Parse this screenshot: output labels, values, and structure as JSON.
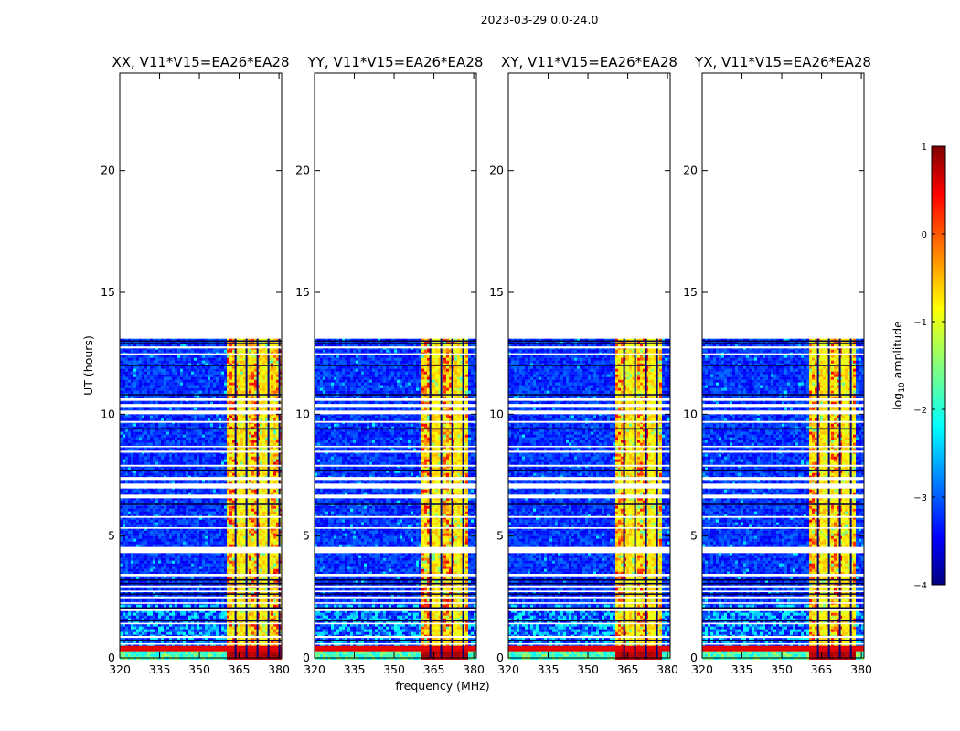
{
  "chart_data": {
    "type": "heatmap",
    "title": "2023-03-29 0.0-24.0",
    "xlabel": "frequency (MHz)",
    "ylabel": "UT (hours)",
    "xlim": [
      320,
      381
    ],
    "ylim": [
      0,
      24
    ],
    "xticks": [
      "320",
      "335",
      "350",
      "365",
      "380"
    ],
    "xtick_values": [
      320,
      335,
      350,
      365,
      380
    ],
    "yticks": [
      "0",
      "5",
      "10",
      "15",
      "20"
    ],
    "ytick_values": [
      0,
      5,
      10,
      15,
      20
    ],
    "data_extent_hours": [
      0,
      13.1
    ],
    "panels": [
      {
        "title": "XX, V11*V15=EA26*EA28",
        "rfi_band_mhz": [
          359.5,
          381
        ]
      },
      {
        "title": "YY, V11*V15=EA26*EA28",
        "rfi_band_mhz": [
          359.5,
          377
        ]
      },
      {
        "title": "XY, V11*V15=EA26*EA28",
        "rfi_band_mhz": [
          359.5,
          377
        ]
      },
      {
        "title": "YX, V11*V15=EA26*EA28",
        "rfi_band_mhz": [
          359.5,
          377
        ]
      }
    ],
    "colorbar": {
      "label": "log10 amplitude",
      "label_main": "log",
      "label_sub": "10",
      "label_tail": " amplitude",
      "range": [
        -4,
        1
      ],
      "ticks": [
        "1",
        "0",
        "−1",
        "−2",
        "−3",
        "−4"
      ],
      "tick_values": [
        1,
        0,
        -1,
        -2,
        -3,
        -4
      ],
      "colormap": "jet",
      "colormap_stops": [
        "#00007f",
        "#0000ff",
        "#00ffff",
        "#ffff00",
        "#ff0000",
        "#7f0000"
      ]
    },
    "gaps_hours": [
      [
        0.55,
        0.6
      ],
      [
        0.82,
        0.9
      ],
      [
        1.38,
        1.44
      ],
      [
        1.92,
        2.0
      ],
      [
        2.22,
        2.28
      ],
      [
        2.45,
        2.52
      ],
      [
        2.7,
        2.76
      ],
      [
        2.9,
        2.97
      ],
      [
        3.35,
        3.45
      ],
      [
        4.3,
        4.55
      ],
      [
        5.3,
        5.36
      ],
      [
        5.75,
        5.82
      ],
      [
        6.55,
        6.7
      ],
      [
        6.95,
        7.15
      ],
      [
        7.3,
        7.42
      ],
      [
        7.85,
        7.92
      ],
      [
        8.42,
        8.5
      ],
      [
        8.65,
        8.7
      ],
      [
        9.65,
        9.72
      ],
      [
        10.0,
        10.15
      ],
      [
        10.3,
        10.42
      ],
      [
        10.55,
        10.65
      ],
      [
        12.7,
        12.78
      ],
      [
        12.45,
        12.5
      ]
    ],
    "dark_lines_hours": [
      0.72,
      1.52,
      2.05,
      2.62,
      3.05,
      3.2,
      6.3,
      7.7,
      9.4,
      10.8,
      12.0,
      12.9,
      13.0
    ]
  }
}
